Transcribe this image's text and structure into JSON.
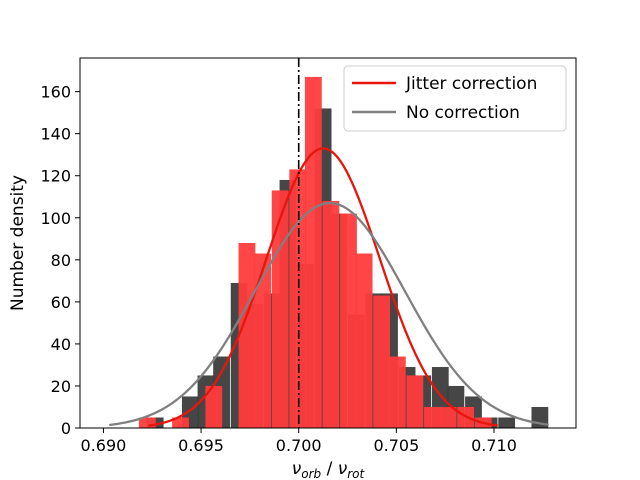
{
  "chart_data": {
    "type": "bar",
    "xlabel_parts": {
      "nu1": "ν",
      "sub1": "orb",
      "sep": " / ",
      "nu2": "ν",
      "sub2": "rot"
    },
    "ylabel": "Number density",
    "xlim": [
      0.6888,
      0.7142
    ],
    "ylim": [
      0,
      176
    ],
    "xticks": [
      0.69,
      0.695,
      0.7,
      0.705,
      0.71
    ],
    "xtick_labels": [
      "0.690",
      "0.695",
      "0.700",
      "0.705",
      "0.710"
    ],
    "yticks": [
      0,
      20,
      40,
      60,
      80,
      100,
      120,
      140,
      160
    ],
    "ytick_labels": [
      "0",
      "20",
      "40",
      "60",
      "80",
      "100",
      "120",
      "140",
      "160"
    ],
    "bin_width": 0.00086,
    "legend_position": "upper-right",
    "reference_line": {
      "x": 0.7,
      "style": "dash-dot",
      "color": "#000000"
    },
    "series": [
      {
        "name": "Jitter correction",
        "bar_color": "#ff3b3b",
        "line_color": "#e8150d",
        "bar_x": [
          0.69225,
          0.69395,
          0.69565,
          0.69735,
          0.69815,
          0.69905,
          0.69995,
          0.70075,
          0.70165,
          0.70255,
          0.70335,
          0.70425,
          0.70505,
          0.70595,
          0.70685,
          0.70765,
          0.70855,
          0.70945
        ],
        "bar_values": [
          5,
          5,
          20,
          88,
          83,
          113,
          123,
          167,
          108,
          102,
          83,
          63,
          34,
          25,
          10,
          10,
          10,
          5
        ],
        "curve": {
          "mu": 0.70125,
          "sigma": 0.0029,
          "peak": 133,
          "x_start": 0.6923,
          "x_end": 0.7102
        }
      },
      {
        "name": "No correction",
        "bar_color": "#3c3c3c",
        "line_color": "#808080",
        "bar_x": [
          0.69265,
          0.69445,
          0.69525,
          0.69605,
          0.69695,
          0.69775,
          0.69865,
          0.69945,
          0.70035,
          0.70125,
          0.70205,
          0.70295,
          0.70385,
          0.70465,
          0.70555,
          0.70635,
          0.70725,
          0.70805,
          0.70895,
          0.70975,
          0.71065,
          0.71235
        ],
        "bar_values": [
          5,
          15,
          25,
          34,
          69,
          59,
          64,
          118,
          78,
          152,
          102,
          54,
          64,
          64,
          29,
          25,
          29,
          20,
          15,
          5,
          5,
          10
        ],
        "curve": {
          "mu": 0.7016,
          "sigma": 0.00385,
          "peak": 107,
          "x_start": 0.6903,
          "x_end": 0.7128
        }
      }
    ]
  }
}
